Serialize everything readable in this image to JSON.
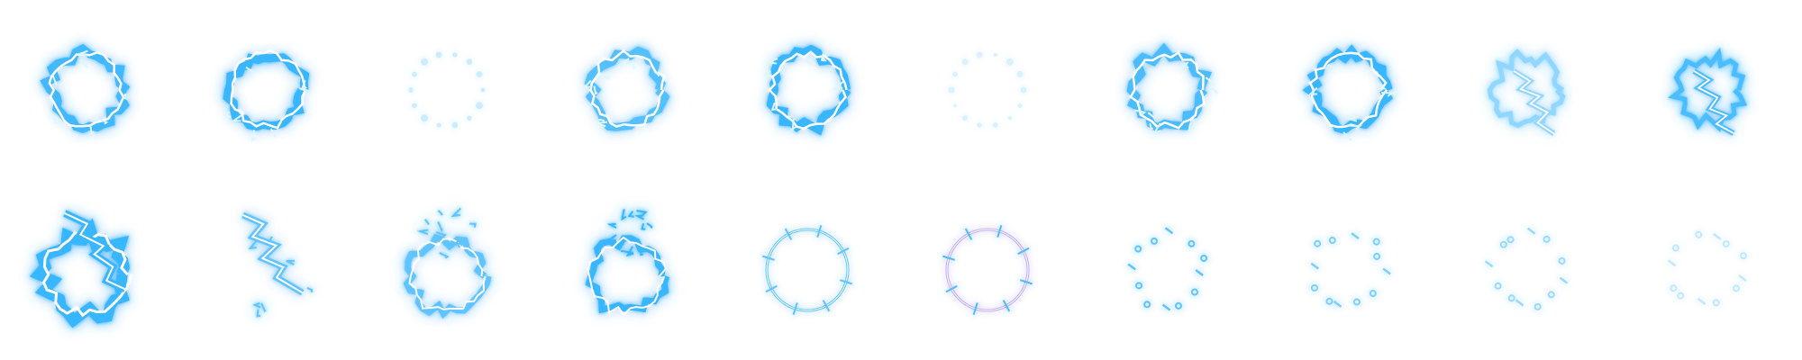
{
  "sprite_sheet": {
    "background": "#ffffff",
    "accent": "#39b6ff",
    "core": "#ffffff",
    "violet": "#b9a4ff",
    "rows": [
      {
        "name": "row-electric-ring",
        "frames": [
          {
            "kind": "ring-electric",
            "intensity": 0.95
          },
          {
            "kind": "ring-electric",
            "intensity": 1.0
          },
          {
            "kind": "ring-faint",
            "intensity": 0.25
          },
          {
            "kind": "ring-electric",
            "intensity": 0.85
          },
          {
            "kind": "ring-electric",
            "intensity": 1.0
          },
          {
            "kind": "ring-faint",
            "intensity": 0.18
          },
          {
            "kind": "ring-electric",
            "intensity": 0.9
          },
          {
            "kind": "ring-electric",
            "intensity": 1.0
          },
          {
            "kind": "ring-zigzag",
            "intensity": 0.55
          },
          {
            "kind": "ring-zigzag",
            "intensity": 0.9
          }
        ]
      },
      {
        "name": "row-burst-and-fade",
        "frames": [
          {
            "kind": "burst-ring",
            "intensity": 1.0
          },
          {
            "kind": "burst-open",
            "intensity": 0.8
          },
          {
            "kind": "burst-shards",
            "intensity": 0.8
          },
          {
            "kind": "burst-shards",
            "intensity": 1.0
          },
          {
            "kind": "thin-ring",
            "intensity": 0.8
          },
          {
            "kind": "thin-ring-violet",
            "intensity": 0.9
          },
          {
            "kind": "dots",
            "intensity": 0.8
          },
          {
            "kind": "dots",
            "intensity": 0.65
          },
          {
            "kind": "dots",
            "intensity": 0.5
          },
          {
            "kind": "dots",
            "intensity": 0.3
          }
        ]
      }
    ]
  }
}
